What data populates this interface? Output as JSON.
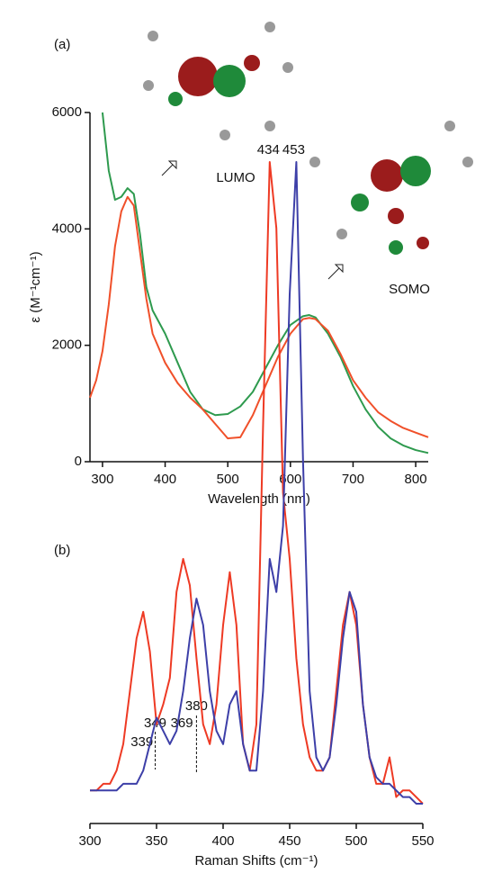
{
  "chart_data": [
    {
      "type": "line",
      "panel_label": "(a)",
      "xlabel": "Wavelength (nm)",
      "ylabel": "ε (M⁻¹cm⁻¹)",
      "annotations": [
        "LUMO",
        "SOMO"
      ],
      "x": [
        280,
        290,
        300,
        310,
        320,
        330,
        340,
        350,
        360,
        370,
        380,
        400,
        420,
        440,
        460,
        480,
        500,
        520,
        540,
        560,
        580,
        600,
        620,
        630,
        640,
        660,
        680,
        700,
        720,
        740,
        760,
        780,
        800,
        820
      ],
      "series": [
        {
          "color": "#2e9a4e",
          "values": [
            null,
            null,
            6000,
            5000,
            4500,
            4550,
            4700,
            4600,
            3900,
            3000,
            2600,
            2200,
            1700,
            1200,
            900,
            800,
            820,
            950,
            1200,
            1600,
            2000,
            2350,
            2500,
            2520,
            2480,
            2200,
            1800,
            1300,
            900,
            600,
            400,
            280,
            200,
            150
          ]
        },
        {
          "color": "#f0502a",
          "values": [
            1100,
            1400,
            1900,
            2700,
            3700,
            4300,
            4550,
            4400,
            3600,
            2800,
            2200,
            1700,
            1350,
            1100,
            900,
            650,
            400,
            420,
            800,
            1300,
            1800,
            2200,
            2450,
            2470,
            2450,
            2250,
            1850,
            1400,
            1100,
            850,
            700,
            580,
            500,
            420
          ]
        }
      ],
      "xlim": [
        280,
        820
      ],
      "xticks": [
        300,
        400,
        500,
        600,
        700,
        800
      ],
      "ylim": [
        0,
        6000
      ],
      "yticks": [
        0,
        2000,
        4000,
        6000
      ]
    },
    {
      "type": "line",
      "panel_label": "(b)",
      "xlabel": "Raman Shifts (cm⁻¹)",
      "peak_labels": [
        339,
        349,
        369,
        380,
        434,
        453
      ],
      "x": [
        300,
        305,
        310,
        315,
        320,
        325,
        330,
        335,
        340,
        345,
        350,
        355,
        360,
        365,
        370,
        375,
        380,
        385,
        390,
        395,
        400,
        405,
        410,
        415,
        420,
        425,
        430,
        435,
        440,
        445,
        450,
        455,
        460,
        465,
        470,
        475,
        480,
        485,
        490,
        495,
        500,
        505,
        510,
        515,
        520,
        525,
        530,
        535,
        540,
        545,
        550
      ],
      "series": [
        {
          "color": "#ee3a24",
          "values": [
            5,
            5,
            6,
            6,
            8,
            12,
            20,
            28,
            32,
            26,
            15,
            18,
            22,
            35,
            40,
            36,
            25,
            15,
            12,
            18,
            30,
            38,
            30,
            12,
            8,
            15,
            60,
            100,
            90,
            50,
            40,
            25,
            15,
            10,
            8,
            8,
            10,
            20,
            30,
            35,
            30,
            18,
            10,
            6,
            6,
            10,
            4,
            5,
            5,
            4,
            3
          ]
        },
        {
          "color": "#3d3fa8",
          "values": [
            5,
            5,
            5,
            5,
            5,
            6,
            6,
            6,
            8,
            12,
            16,
            14,
            12,
            14,
            20,
            28,
            34,
            30,
            20,
            14,
            12,
            18,
            20,
            12,
            8,
            8,
            20,
            40,
            35,
            45,
            80,
            100,
            55,
            20,
            10,
            8,
            10,
            18,
            28,
            35,
            32,
            18,
            10,
            7,
            6,
            6,
            5,
            4,
            4,
            3,
            3
          ]
        }
      ],
      "xlim": [
        300,
        550
      ],
      "xticks": [
        300,
        350,
        400,
        450,
        500,
        550
      ],
      "ylim": [
        0,
        100
      ]
    }
  ]
}
